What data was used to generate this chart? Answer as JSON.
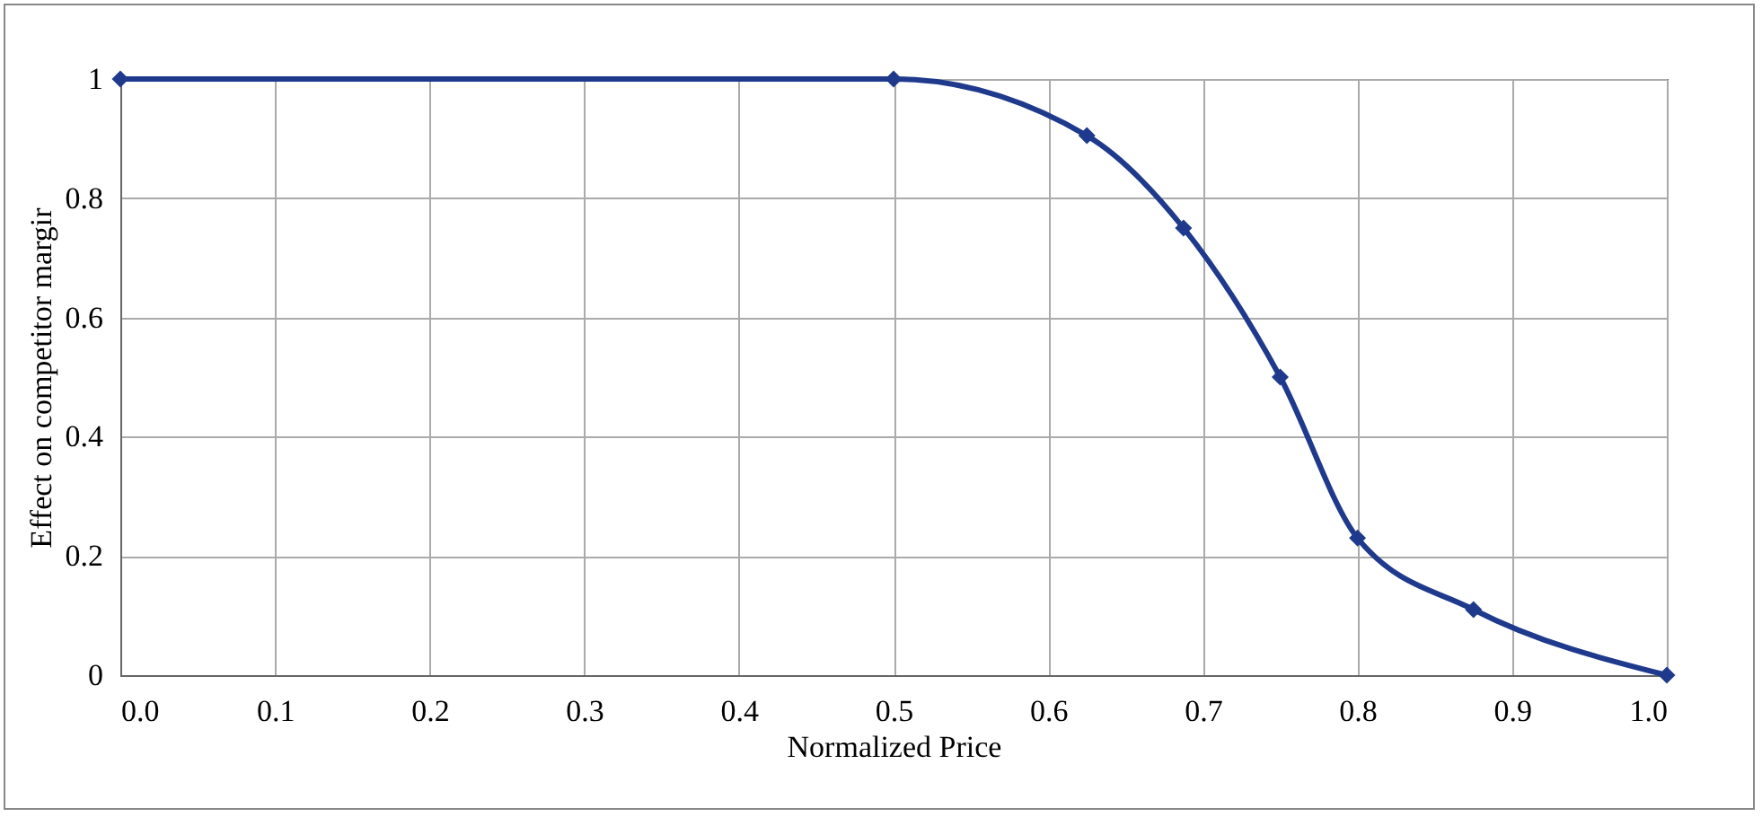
{
  "chart_data": {
    "type": "line",
    "xlabel": "Normalized Price",
    "ylabel": "Effect on competitor margir",
    "x": [
      0,
      0.5,
      0.625,
      0.6875,
      0.75,
      0.8,
      0.875,
      1.0
    ],
    "series": [
      {
        "color": "#1f3a8c",
        "values": [
          1,
          1,
          0.905,
          0.75,
          0.5,
          0.23,
          0.11,
          0
        ]
      }
    ],
    "xlim": [
      0,
      1
    ],
    "ylim": [
      0,
      1
    ],
    "xticks": [
      {
        "value": 0,
        "label": "0.0"
      },
      {
        "value": 0.1,
        "label": "0.1"
      },
      {
        "value": 0.2,
        "label": "0.2"
      },
      {
        "value": 0.3,
        "label": "0.3"
      },
      {
        "value": 0.4,
        "label": "0.4"
      },
      {
        "value": 0.5,
        "label": "0.5"
      },
      {
        "value": 0.6,
        "label": "0.6"
      },
      {
        "value": 0.7,
        "label": "0.7"
      },
      {
        "value": 0.8,
        "label": "0.8"
      },
      {
        "value": 0.9,
        "label": "0.9"
      },
      {
        "value": 1,
        "label": "1.0"
      }
    ],
    "yticks": [
      0,
      0.2,
      0.4,
      0.6,
      0.8,
      1
    ],
    "grid": true,
    "marker": "diamond",
    "line_style": "solid",
    "legend": false
  }
}
